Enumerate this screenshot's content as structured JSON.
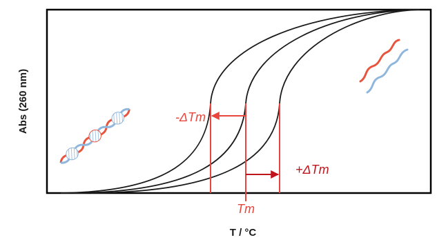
{
  "chart_data": {
    "type": "line",
    "xlabel": "T / °C",
    "ylabel": "Abs (260 nm)",
    "curves": [
      {
        "tm_position": "left"
      },
      {
        "tm_position": "center"
      },
      {
        "tm_position": "right"
      }
    ],
    "annotations": {
      "tm": "Tm",
      "minus_delta_tm": "-ΔTm",
      "plus_delta_tm": "+ΔTm"
    },
    "icons": {
      "left": "double-helix-dna-icon",
      "right": "single-strand-dna-icon"
    },
    "colors": {
      "curve": "#1a1a1a",
      "annotation": "#e8463c",
      "annotation_dark": "#c0141c",
      "strand_red": "#e8553f",
      "strand_blue": "#8fb6dd"
    },
    "grid": false
  }
}
